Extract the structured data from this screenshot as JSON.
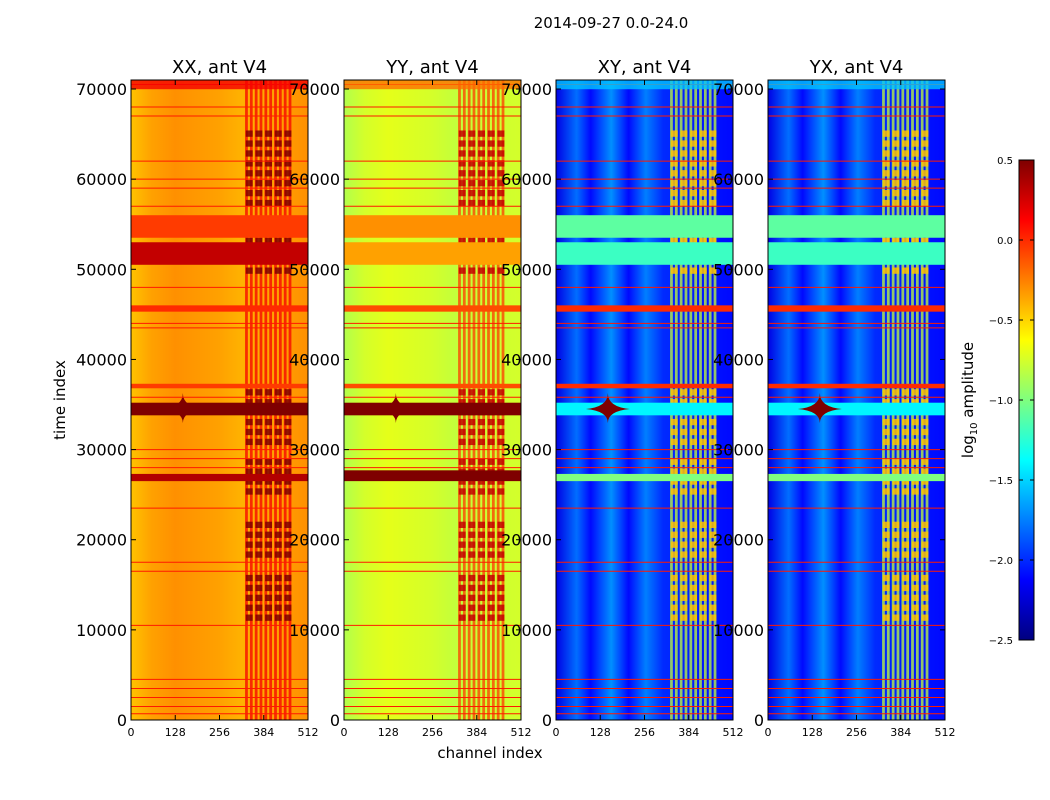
{
  "chart_data": {
    "type": "heatmap",
    "suptitle": "2014-09-27 0.0-24.0",
    "xlabel": "channel index",
    "ylabel": "time index",
    "xlim": [
      0,
      512
    ],
    "ylim": [
      0,
      71000
    ],
    "x_ticks": [
      0,
      128,
      256,
      384,
      512
    ],
    "y_ticks": [
      0,
      10000,
      20000,
      30000,
      40000,
      50000,
      60000,
      70000
    ],
    "colorbar": {
      "label": "log10 amplitude",
      "label_main": "log",
      "label_sub": "10",
      "label_rest": " amplitude",
      "range": [
        -2.5,
        0.5
      ],
      "ticks": [
        0.5,
        0.0,
        -0.5,
        -1.0,
        -1.5,
        -2.0,
        -2.5
      ],
      "tick_labels": [
        "0.5",
        "0.0",
        "−0.5",
        "−1.0",
        "−1.5",
        "−2.0",
        "−2.5"
      ],
      "colormap": [
        "#00007f",
        "#0000ff",
        "#007fff",
        "#00ffff",
        "#7fff7f",
        "#ffff00",
        "#ff7f00",
        "#ff0000",
        "#7f0000"
      ]
    },
    "panels": [
      {
        "title": "XX, ant V4",
        "base_level": -0.35,
        "rfi_channel_range": [
          330,
          470
        ],
        "rfi_level": 0.15,
        "channel_profile": [
          [
            0,
            -0.45
          ],
          [
            60,
            -0.35
          ],
          [
            128,
            -0.3
          ],
          [
            256,
            -0.35
          ],
          [
            320,
            -0.4
          ],
          [
            512,
            -0.3
          ]
        ],
        "bands": [
          {
            "t_start": 53500,
            "t_end": 56000,
            "level": -0.05
          },
          {
            "t_start": 50500,
            "t_end": 53000,
            "level": 0.3
          },
          {
            "t_start": 45300,
            "t_end": 46000,
            "level": 0.0
          },
          {
            "t_start": 33800,
            "t_end": 35200,
            "level": 0.5
          },
          {
            "t_start": 36800,
            "t_end": 37300,
            "level": -0.05
          },
          {
            "t_start": 26500,
            "t_end": 27300,
            "level": 0.35
          }
        ],
        "lines": [
          700,
          1500,
          2500,
          3500,
          4500,
          10500,
          16500,
          17500,
          23500,
          28000,
          29000,
          30000,
          35800,
          43500,
          44000,
          48000,
          57000,
          59000,
          60000,
          62000,
          67000,
          68000,
          70500
        ]
      },
      {
        "title": "YY, ant V4",
        "base_level": -0.7,
        "rfi_channel_range": [
          330,
          470
        ],
        "rfi_level": -0.05,
        "channel_profile": [
          [
            0,
            -0.85
          ],
          [
            60,
            -0.75
          ],
          [
            128,
            -0.7
          ],
          [
            256,
            -0.75
          ],
          [
            320,
            -0.8
          ],
          [
            512,
            -0.75
          ]
        ],
        "bands": [
          {
            "t_start": 53500,
            "t_end": 56000,
            "level": -0.3
          },
          {
            "t_start": 50500,
            "t_end": 53000,
            "level": -0.35
          },
          {
            "t_start": 45300,
            "t_end": 46000,
            "level": -0.1
          },
          {
            "t_start": 33800,
            "t_end": 35200,
            "level": 0.5
          },
          {
            "t_start": 36800,
            "t_end": 37300,
            "level": -0.1
          },
          {
            "t_start": 26500,
            "t_end": 27700,
            "level": 0.5
          }
        ],
        "lines": [
          700,
          1500,
          2500,
          3500,
          4500,
          10500,
          16500,
          17500,
          23500,
          28000,
          29000,
          30000,
          35800,
          43500,
          44000,
          48000,
          57000,
          59000,
          60000,
          62000,
          67000,
          68000,
          70500
        ]
      },
      {
        "title": "XY, ant V4",
        "base_level": -2.05,
        "rfi_channel_range": [
          330,
          470
        ],
        "rfi_level": -0.8,
        "channel_profile": [
          [
            0,
            -2.2
          ],
          [
            60,
            -1.8
          ],
          [
            100,
            -2.1
          ],
          [
            160,
            -1.7
          ],
          [
            210,
            -2.1
          ],
          [
            260,
            -1.75
          ],
          [
            310,
            -2.0
          ],
          [
            512,
            -2.1
          ]
        ],
        "bands": [
          {
            "t_start": 53500,
            "t_end": 56000,
            "level": -1.1
          },
          {
            "t_start": 50500,
            "t_end": 53000,
            "level": -1.2
          },
          {
            "t_start": 45300,
            "t_end": 46000,
            "level": 0.0
          },
          {
            "t_start": 33800,
            "t_end": 35200,
            "level": -1.4
          },
          {
            "t_start": 36800,
            "t_end": 37300,
            "level": 0.0
          },
          {
            "t_start": 26500,
            "t_end": 27300,
            "level": -1.0
          }
        ],
        "lines": [
          700,
          1500,
          2500,
          3500,
          4500,
          10500,
          16500,
          17500,
          23500,
          28000,
          29000,
          30000,
          35800,
          43500,
          44000,
          48000,
          57000,
          59000,
          60000,
          62000,
          67000,
          68000,
          70500
        ]
      },
      {
        "title": "YX, ant V4",
        "base_level": -2.05,
        "rfi_channel_range": [
          330,
          470
        ],
        "rfi_level": -0.8,
        "channel_profile": [
          [
            0,
            -2.2
          ],
          [
            60,
            -1.8
          ],
          [
            100,
            -2.1
          ],
          [
            160,
            -1.7
          ],
          [
            210,
            -2.1
          ],
          [
            260,
            -1.75
          ],
          [
            310,
            -2.0
          ],
          [
            512,
            -2.1
          ]
        ],
        "bands": [
          {
            "t_start": 53500,
            "t_end": 56000,
            "level": -1.1
          },
          {
            "t_start": 50500,
            "t_end": 53000,
            "level": -1.2
          },
          {
            "t_start": 45300,
            "t_end": 46000,
            "level": 0.0
          },
          {
            "t_start": 33800,
            "t_end": 35200,
            "level": -1.4
          },
          {
            "t_start": 36800,
            "t_end": 37300,
            "level": 0.0
          },
          {
            "t_start": 26500,
            "t_end": 27300,
            "level": -1.0
          }
        ],
        "lines": [
          700,
          1500,
          2500,
          3500,
          4500,
          10500,
          16500,
          17500,
          23500,
          28000,
          29000,
          30000,
          35800,
          43500,
          44000,
          48000,
          57000,
          59000,
          60000,
          62000,
          67000,
          68000,
          70500
        ]
      }
    ]
  }
}
